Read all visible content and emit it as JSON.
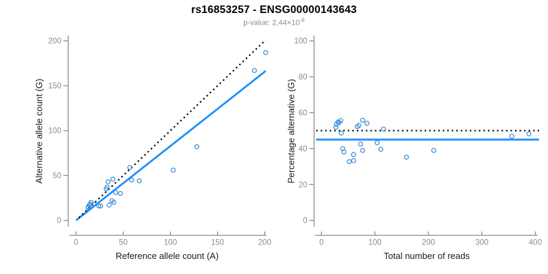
{
  "header": {
    "title": "rs16853257 - ENSG00000143643",
    "subtitle_base": "p-value: 2.44×10",
    "subtitle_exponent": "-6"
  },
  "colors": {
    "line_blue": "#1E90FF",
    "point_blue": "#3D8EDC",
    "dotted_black": "#000000",
    "axis_gray": "#8C8C8C",
    "label_dark": "#1a1a1a"
  },
  "chart_data": [
    {
      "type": "scatter",
      "xlabel": "Reference allele count (A)",
      "ylabel": "Alternative allele count (G)",
      "xlim": [
        0,
        200
      ],
      "ylim": [
        0,
        200
      ],
      "xticks": [
        0,
        50,
        100,
        150,
        200
      ],
      "yticks": [
        0,
        50,
        100,
        150,
        200
      ],
      "grid": false,
      "points": [
        [
          13,
          14
        ],
        [
          13,
          15
        ],
        [
          14,
          17
        ],
        [
          15,
          18
        ],
        [
          16,
          20
        ],
        [
          19,
          18
        ],
        [
          24,
          16
        ],
        [
          26,
          16
        ],
        [
          35,
          17
        ],
        [
          38,
          22
        ],
        [
          40,
          20
        ],
        [
          32,
          35
        ],
        [
          33,
          37
        ],
        [
          34,
          43
        ],
        [
          42,
          31
        ],
        [
          47,
          30
        ],
        [
          39,
          46
        ],
        [
          57,
          59
        ],
        [
          59,
          45
        ],
        [
          67,
          44
        ],
        [
          103,
          56
        ],
        [
          128,
          82
        ],
        [
          189,
          167
        ],
        [
          201,
          187
        ]
      ],
      "lines": [
        {
          "name": "identity-line",
          "style": "dotted",
          "color": "#000000",
          "from": [
            3,
            3
          ],
          "to": [
            201,
            201
          ]
        },
        {
          "name": "fit-line",
          "style": "solid",
          "color": "#1E90FF",
          "from": [
            0,
            0
          ],
          "to": [
            201,
            166.5
          ]
        }
      ]
    },
    {
      "type": "scatter",
      "xlabel": "Total number of reads",
      "ylabel": "Percentage alternative (G)",
      "xlim": [
        0,
        400
      ],
      "ylim": [
        0,
        100
      ],
      "xticks": [
        0,
        100,
        200,
        300,
        400
      ],
      "yticks": [
        0,
        20,
        40,
        60,
        80,
        100
      ],
      "grid": false,
      "points": [
        [
          27,
          51.9
        ],
        [
          28,
          53.6
        ],
        [
          31,
          54.8
        ],
        [
          33,
          54.5
        ],
        [
          36,
          55.6
        ],
        [
          37,
          48.6
        ],
        [
          40,
          40.0
        ],
        [
          42,
          38.1
        ],
        [
          52,
          32.7
        ],
        [
          60,
          33.3
        ],
        [
          60,
          36.7
        ],
        [
          67,
          52.2
        ],
        [
          70,
          52.9
        ],
        [
          77,
          55.8
        ],
        [
          73,
          42.5
        ],
        [
          77,
          39.0
        ],
        [
          85,
          54.1
        ],
        [
          104,
          43.3
        ],
        [
          111,
          39.6
        ],
        [
          116,
          50.9
        ],
        [
          159,
          35.2
        ],
        [
          210,
          39.0
        ],
        [
          356,
          46.9
        ],
        [
          388,
          48.2
        ]
      ],
      "lines": [
        {
          "name": "expected-line",
          "style": "dotted",
          "color": "#000000",
          "hline": 50
        },
        {
          "name": "observed-line",
          "style": "solid",
          "color": "#1E90FF",
          "hline": 45
        }
      ]
    }
  ]
}
